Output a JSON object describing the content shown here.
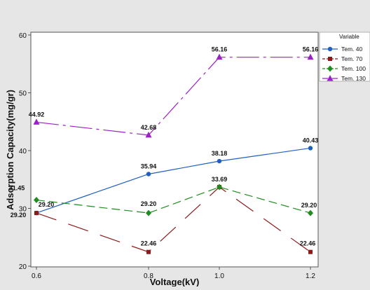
{
  "chart_data": {
    "type": "line",
    "title": "",
    "xlabel": "Voltage(kV)",
    "ylabel": "Adsorption Capacity(mg/gr)",
    "x": [
      0.6,
      0.8,
      1.0,
      1.2
    ],
    "x_tick_labels": [
      "0.6",
      "0.8",
      "1.0",
      "1.2"
    ],
    "xlim": [
      0.6,
      1.2
    ],
    "ylim": [
      20,
      60
    ],
    "y_ticks": [
      20,
      30,
      40,
      50,
      60
    ],
    "grid": false,
    "legend": {
      "title": "Variable",
      "placement": "top-right"
    },
    "series": [
      {
        "name": "Tem. 40",
        "color": "#1f5fbf",
        "marker": "circle",
        "dash": "solid",
        "values": [
          29.2,
          35.94,
          38.18,
          40.43
        ],
        "labels": [
          "29.20",
          "35.94",
          "38.18",
          "40.43"
        ]
      },
      {
        "name": "Tem. 70",
        "color": "#8b1a1a",
        "marker": "square",
        "dash": "long-dash",
        "values": [
          29.2,
          22.46,
          33.69,
          22.46
        ],
        "labels": [
          "29.20",
          "22.46",
          "33.69",
          "22.46"
        ]
      },
      {
        "name": "Tem. 100",
        "color": "#1e8c1e",
        "marker": "diamond",
        "dash": "dash",
        "values": [
          31.45,
          29.2,
          33.69,
          29.2
        ],
        "labels": [
          "31.45",
          "29.20",
          "33.69",
          "29.20"
        ]
      },
      {
        "name": "Tem. 130",
        "color": "#9b20c8",
        "marker": "triangle",
        "dash": "dash-dot",
        "values": [
          44.92,
          42.68,
          56.16,
          56.16
        ],
        "labels": [
          "44.92",
          "42.68",
          "56.16",
          "56.16"
        ]
      }
    ]
  }
}
